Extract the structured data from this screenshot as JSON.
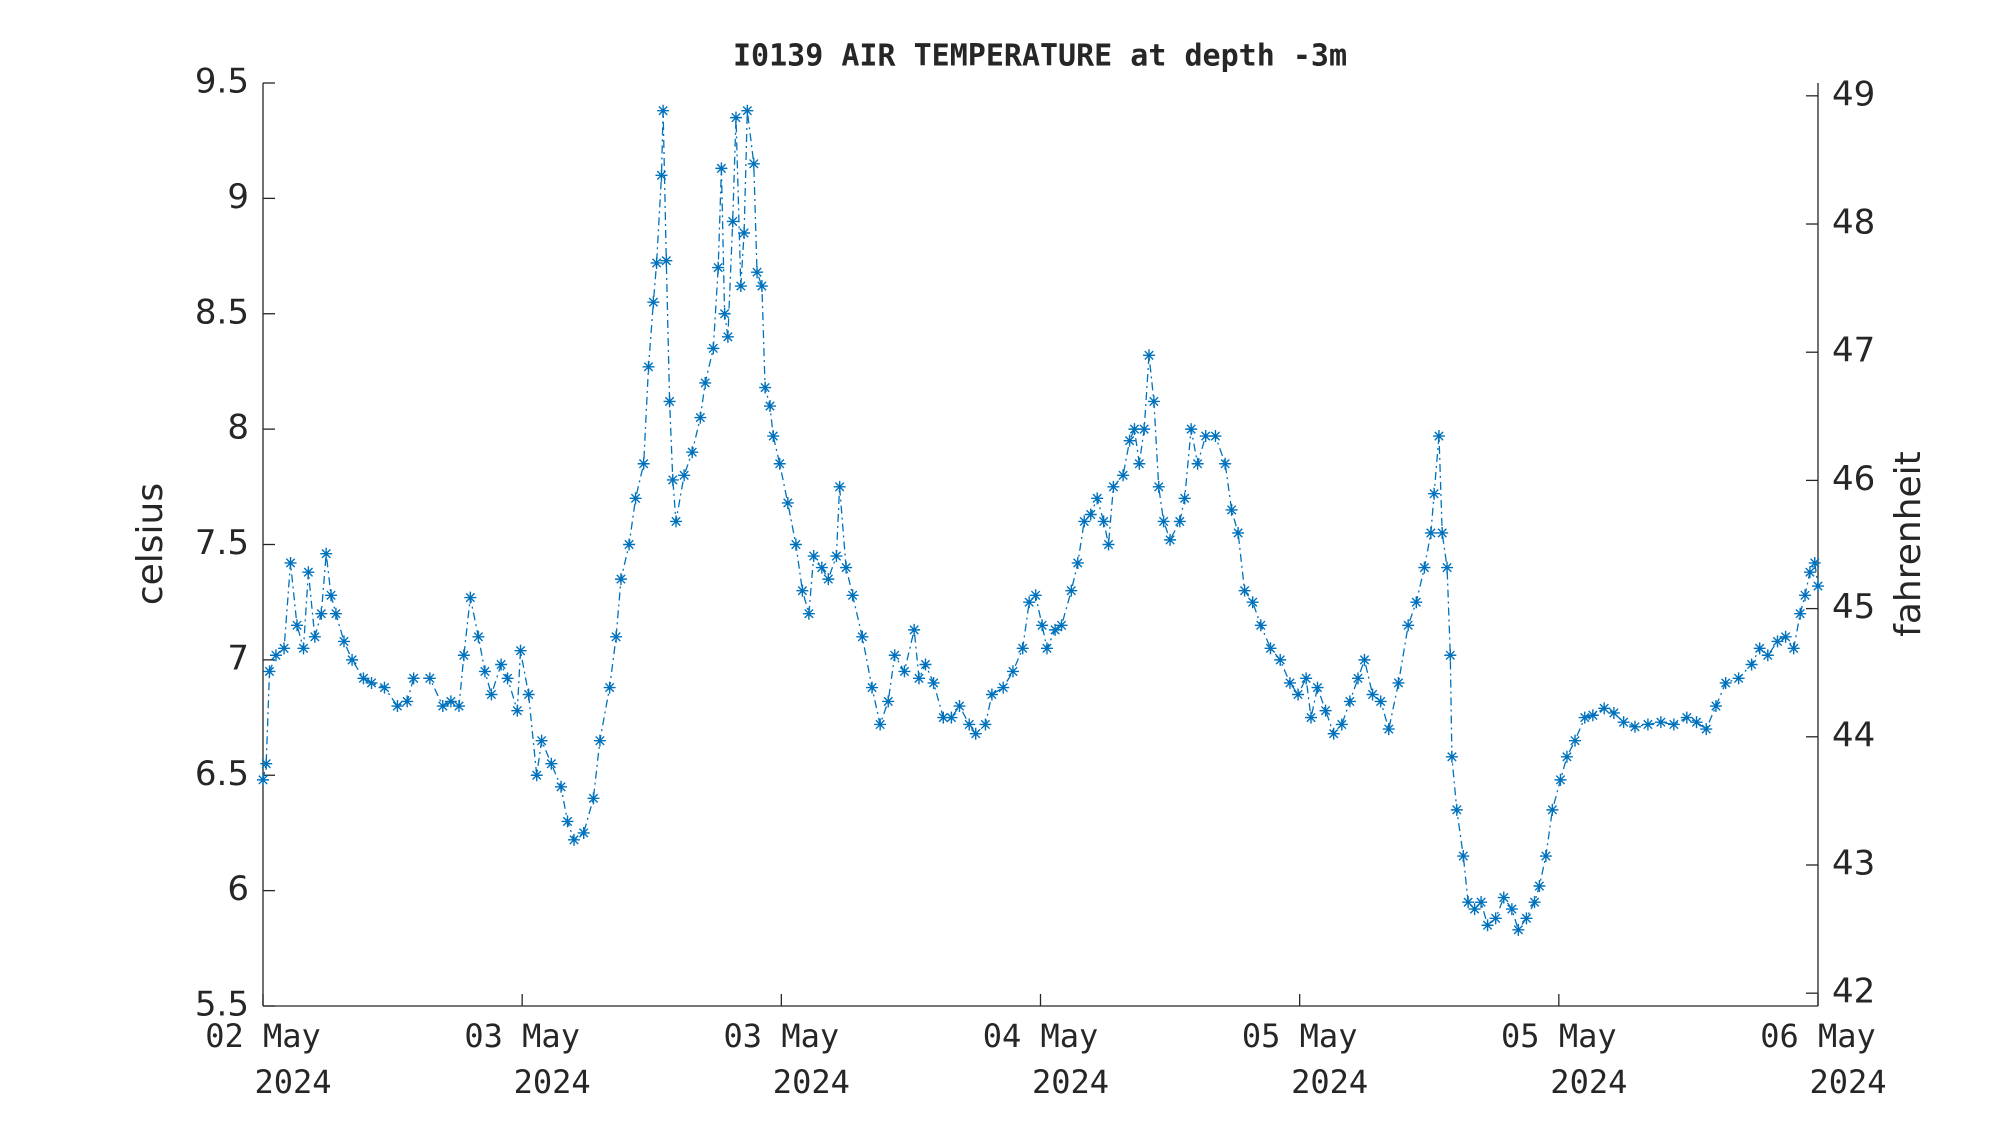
{
  "chart_data": {
    "type": "line",
    "title": "I0139 AIR TEMPERATURE at depth -3m",
    "ylabel": "celsius",
    "y2label": "fahrenheit",
    "xlim": [
      0,
      96
    ],
    "xticks": [
      {
        "value": 0,
        "label": "02 May 2024"
      },
      {
        "value": 16,
        "label": "03 May 2024"
      },
      {
        "value": 32,
        "label": "03 May 2024"
      },
      {
        "value": 48,
        "label": "04 May 2024"
      },
      {
        "value": 64,
        "label": "05 May 2024"
      },
      {
        "value": 80,
        "label": "05 May 2024"
      },
      {
        "value": 96,
        "label": "06 May 2024"
      }
    ],
    "ylim": [
      5.5,
      9.5
    ],
    "yticks": [
      5.5,
      6,
      6.5,
      7,
      7.5,
      8,
      8.5,
      9,
      9.5
    ],
    "y2lim": [
      41.9,
      49.1
    ],
    "y2ticks": [
      42,
      43,
      44,
      45,
      46,
      47,
      48,
      49
    ],
    "series": [
      {
        "color": "#0072bd",
        "x": [
          0,
          0.2,
          0.4,
          0.8,
          1.3,
          1.7,
          2.1,
          2.5,
          2.8,
          3.2,
          3.6,
          3.9,
          4.2,
          4.5,
          5.0,
          5.5,
          6.2,
          6.7,
          7.5,
          8.3,
          8.9,
          9.3,
          10.3,
          11.1,
          11.6,
          12.1,
          12.4,
          12.8,
          13.3,
          13.7,
          14.1,
          14.7,
          15.1,
          15.7,
          15.9,
          16.4,
          16.9,
          17.2,
          17.8,
          18.4,
          18.8,
          19.2,
          19.8,
          20.4,
          20.8,
          21.4,
          21.8,
          22.1,
          22.6,
          23.0,
          23.5,
          23.8,
          24.1,
          24.3,
          24.6,
          24.7,
          24.9,
          25.1,
          25.3,
          25.5,
          26.0,
          26.5,
          27.0,
          27.3,
          27.8,
          28.1,
          28.3,
          28.5,
          28.7,
          29.0,
          29.2,
          29.5,
          29.7,
          29.9,
          30.3,
          30.5,
          30.8,
          31.0,
          31.3,
          31.5,
          31.9,
          32.4,
          32.9,
          33.3,
          33.7,
          34.0,
          34.5,
          34.9,
          35.4,
          35.6,
          36.0,
          36.4,
          37.0,
          37.6,
          38.1,
          38.6,
          39.0,
          39.6,
          40.2,
          40.5,
          40.9,
          41.4,
          42.0,
          42.5,
          43.0,
          43.6,
          44.0,
          44.6,
          45.0,
          45.7,
          46.3,
          46.9,
          47.3,
          47.7,
          48.1,
          48.4,
          48.9,
          49.3,
          49.9,
          50.3,
          50.7,
          51.1,
          51.5,
          51.9,
          52.2,
          52.5,
          53.1,
          53.5,
          53.8,
          54.1,
          54.4,
          54.7,
          55.0,
          55.3,
          55.6,
          56.0,
          56.6,
          56.9,
          57.3,
          57.7,
          58.2,
          58.8,
          59.4,
          59.8,
          60.2,
          60.6,
          61.1,
          61.6,
          62.2,
          62.8,
          63.4,
          63.9,
          64.4,
          64.7,
          65.1,
          65.6,
          66.1,
          66.6,
          67.1,
          67.6,
          68.0,
          68.5,
          69.0,
          69.5,
          70.1,
          70.7,
          71.2,
          71.7,
          72.1,
          72.3,
          72.6,
          72.8,
          73.1,
          73.3,
          73.4,
          73.7,
          74.1,
          74.4,
          74.8,
          75.2,
          75.6,
          76.1,
          76.6,
          77.1,
          77.5,
          78.0,
          78.5,
          78.8,
          79.2,
          79.6,
          80.1,
          80.5,
          81.0,
          81.6,
          82.1,
          82.8,
          83.4,
          84.0,
          84.7,
          85.5,
          86.3,
          87.1,
          87.9,
          88.5,
          89.1,
          89.7,
          90.3,
          91.1,
          91.9,
          92.4,
          92.9,
          93.5,
          94.0,
          94.5,
          94.9,
          95.2,
          95.5,
          95.8,
          96.0
        ],
        "values": [
          6.48,
          6.55,
          6.95,
          7.02,
          7.05,
          7.42,
          7.15,
          7.05,
          7.38,
          7.1,
          7.2,
          7.46,
          7.28,
          7.2,
          7.08,
          7.0,
          6.92,
          6.9,
          6.88,
          6.8,
          6.82,
          6.92,
          6.92,
          6.8,
          6.82,
          6.8,
          7.02,
          7.27,
          7.1,
          6.95,
          6.85,
          6.98,
          6.92,
          6.78,
          7.04,
          6.85,
          6.5,
          6.65,
          6.55,
          6.45,
          6.3,
          6.22,
          6.25,
          6.4,
          6.65,
          6.88,
          7.1,
          7.35,
          7.5,
          7.7,
          7.85,
          8.27,
          8.55,
          8.72,
          9.1,
          9.38,
          8.73,
          8.12,
          7.78,
          7.6,
          7.8,
          7.9,
          8.05,
          8.2,
          8.35,
          8.7,
          9.13,
          8.5,
          8.4,
          8.9,
          9.35,
          8.62,
          8.85,
          9.38,
          9.15,
          8.68,
          8.62,
          8.18,
          8.1,
          7.97,
          7.85,
          7.68,
          7.5,
          7.3,
          7.2,
          7.45,
          7.4,
          7.35,
          7.45,
          7.75,
          7.4,
          7.28,
          7.1,
          6.88,
          6.72,
          6.82,
          7.02,
          6.95,
          7.13,
          6.92,
          6.98,
          6.9,
          6.75,
          6.75,
          6.8,
          6.72,
          6.68,
          6.72,
          6.85,
          6.88,
          6.95,
          7.05,
          7.25,
          7.28,
          7.15,
          7.05,
          7.13,
          7.15,
          7.3,
          7.42,
          7.6,
          7.63,
          7.7,
          7.6,
          7.5,
          7.75,
          7.8,
          7.95,
          8.0,
          7.85,
          8.0,
          8.32,
          8.12,
          7.75,
          7.6,
          7.52,
          7.6,
          7.7,
          8.0,
          7.85,
          7.97,
          7.97,
          7.85,
          7.65,
          7.55,
          7.3,
          7.25,
          7.15,
          7.05,
          7.0,
          6.9,
          6.85,
          6.92,
          6.75,
          6.88,
          6.78,
          6.68,
          6.72,
          6.82,
          6.92,
          7.0,
          6.85,
          6.82,
          6.7,
          6.9,
          7.15,
          7.25,
          7.4,
          7.55,
          7.72,
          7.97,
          7.55,
          7.4,
          7.02,
          6.58,
          6.35,
          6.15,
          5.95,
          5.92,
          5.95,
          5.85,
          5.88,
          5.97,
          5.92,
          5.83,
          5.88,
          5.95,
          6.02,
          6.15,
          6.35,
          6.48,
          6.58,
          6.65,
          6.75,
          6.76,
          6.79,
          6.77,
          6.73,
          6.71,
          6.72,
          6.73,
          6.72,
          6.75,
          6.73,
          6.7,
          6.8,
          6.9,
          6.92,
          6.98,
          7.05,
          7.02,
          7.08,
          7.1,
          7.05,
          7.2,
          7.28,
          7.38,
          7.42,
          7.32
        ]
      }
    ]
  }
}
